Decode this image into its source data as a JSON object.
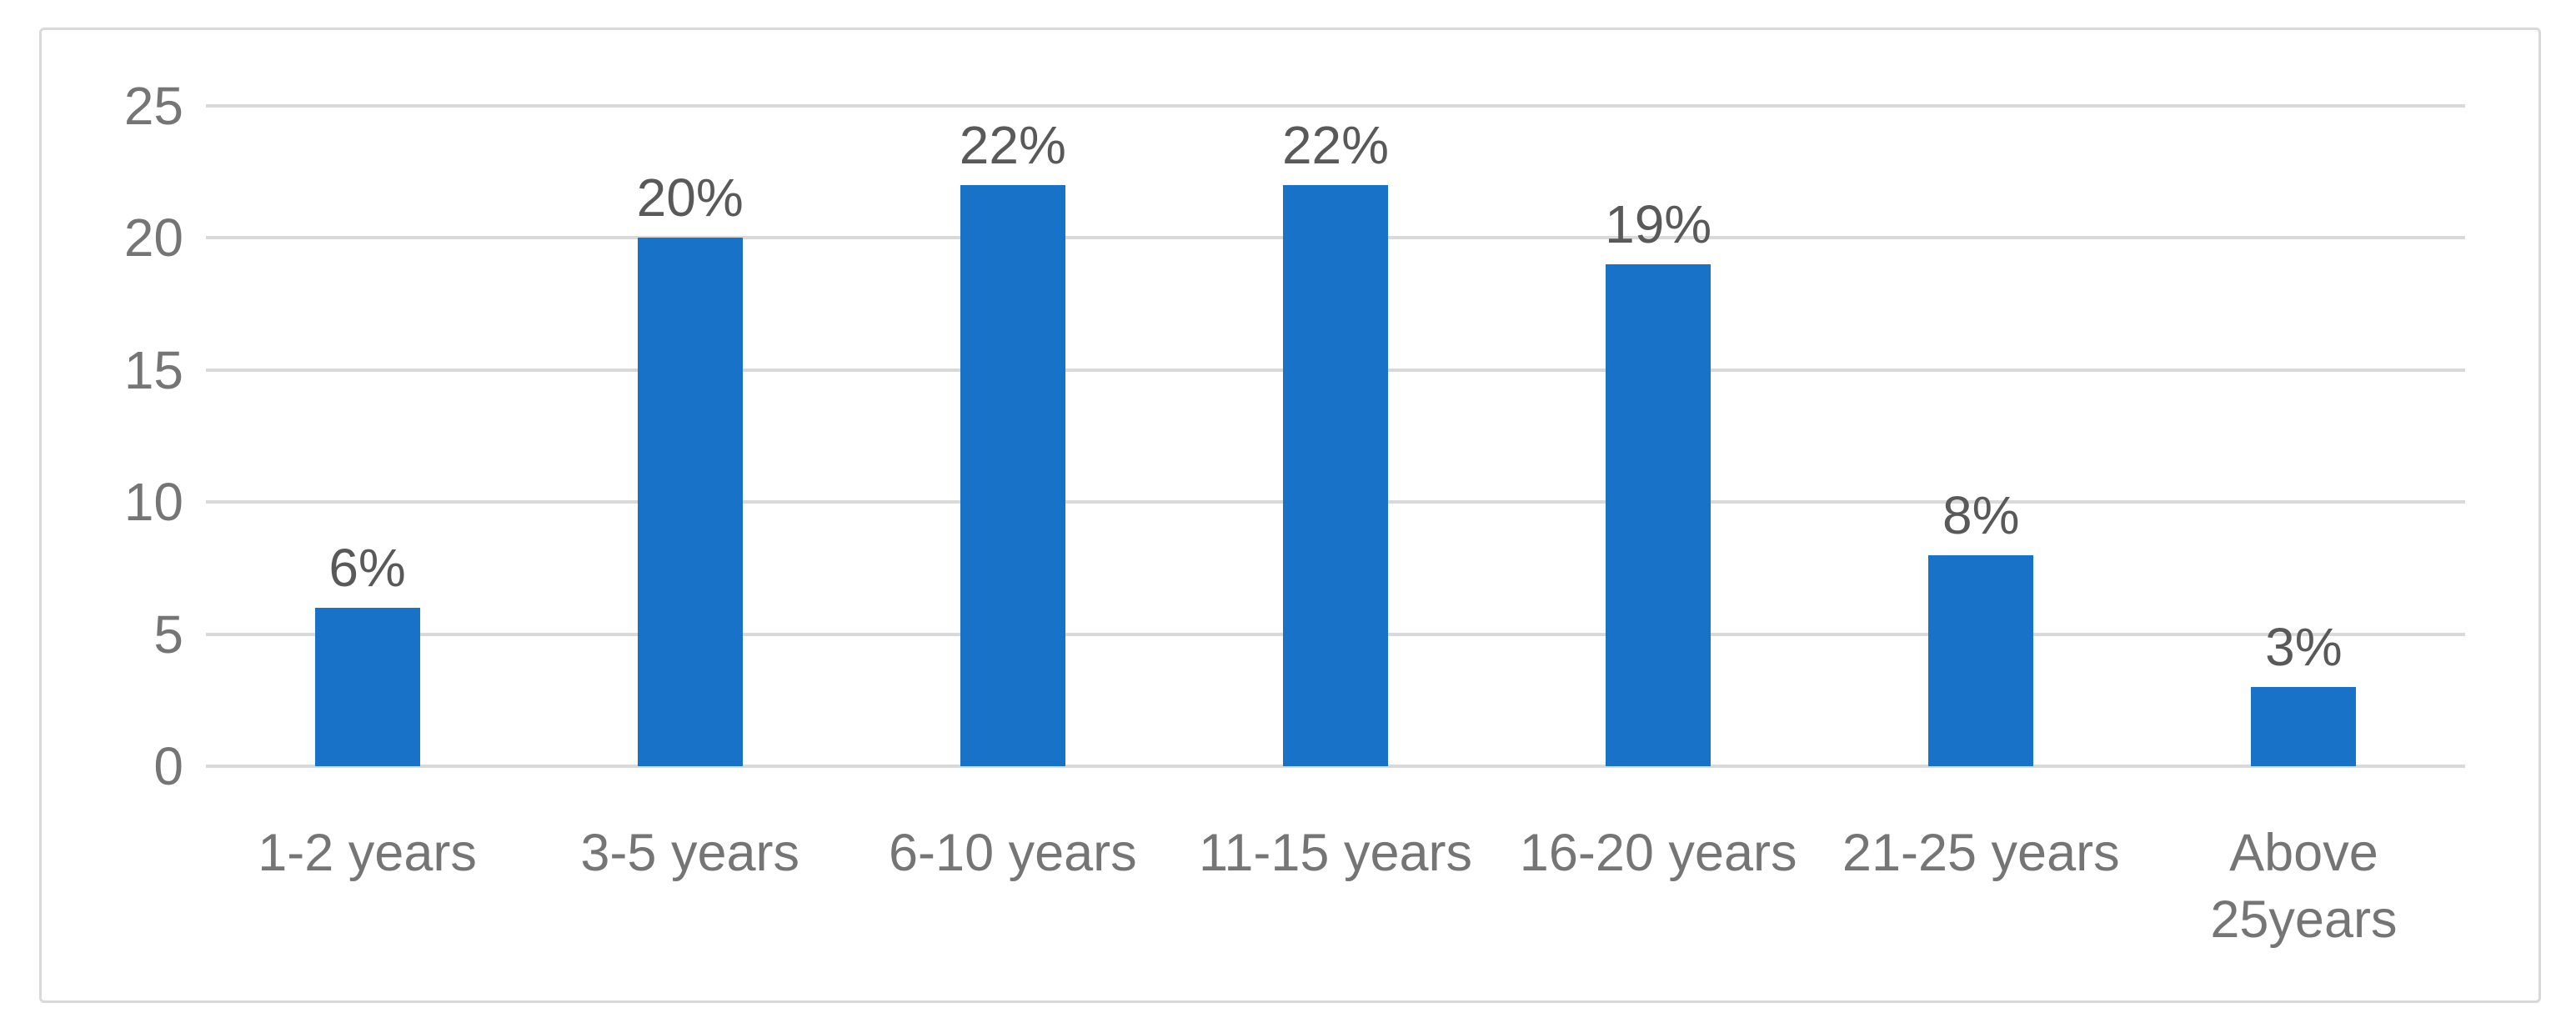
{
  "chart_data": {
    "type": "bar",
    "title": "",
    "categories": [
      "1-2 years",
      "3-5 years",
      "6-10 years",
      "11-15 years",
      "16-20 years",
      "21-25 years",
      "Above 25years"
    ],
    "values": [
      6,
      20,
      22,
      22,
      19,
      8,
      3
    ],
    "data_labels": [
      "6%",
      "20%",
      "22%",
      "22%",
      "19%",
      "8%",
      "3%"
    ],
    "xlabel": "",
    "ylabel": "",
    "ylim": [
      0,
      25
    ],
    "y_ticks": [
      0,
      5,
      10,
      15,
      20,
      25
    ],
    "grid": "horizontal",
    "legend_position": "none",
    "colors": {
      "bar": "#1873c8",
      "gridline": "#d9d9d9",
      "frame_border": "#d9d9d9",
      "axis_label": "#757575",
      "data_label": "#595959",
      "background": "#ffffff"
    }
  }
}
